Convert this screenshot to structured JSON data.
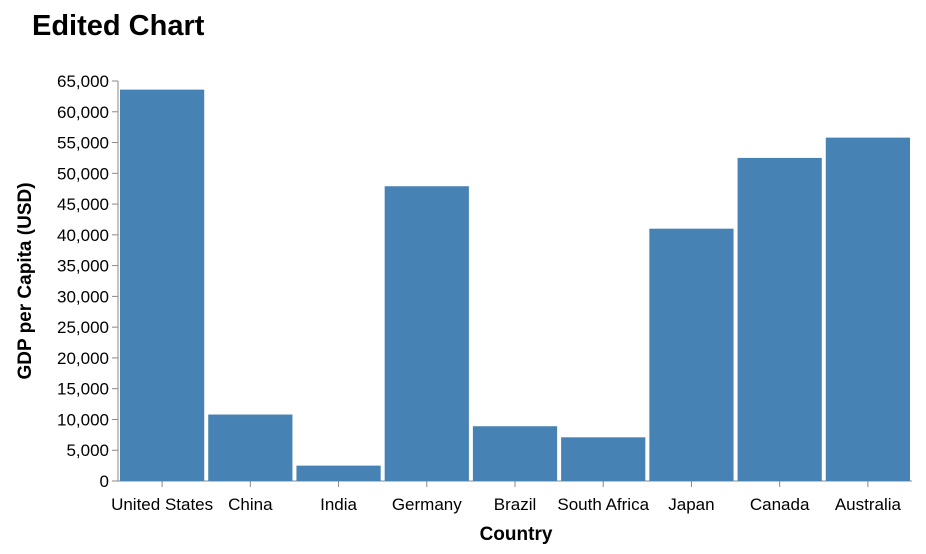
{
  "chart_data": {
    "type": "bar",
    "title": "Edited Chart",
    "xlabel": "Country",
    "ylabel": "GDP per Capita (USD)",
    "categories": [
      "United States",
      "China",
      "India",
      "Germany",
      "Brazil",
      "South Africa",
      "Japan",
      "Canada",
      "Australia"
    ],
    "values": [
      63600,
      10800,
      2500,
      47900,
      8900,
      7100,
      41000,
      52500,
      55800
    ],
    "ylim": [
      0,
      65000
    ],
    "yticks": [
      0,
      5000,
      10000,
      15000,
      20000,
      25000,
      30000,
      35000,
      40000,
      45000,
      50000,
      55000,
      60000,
      65000
    ],
    "ytick_labels": [
      "0",
      "5,000",
      "10,000",
      "15,000",
      "20,000",
      "25,000",
      "30,000",
      "35,000",
      "40,000",
      "45,000",
      "50,000",
      "55,000",
      "60,000",
      "65,000"
    ],
    "grid": false,
    "bar_color": "#4682b4"
  }
}
